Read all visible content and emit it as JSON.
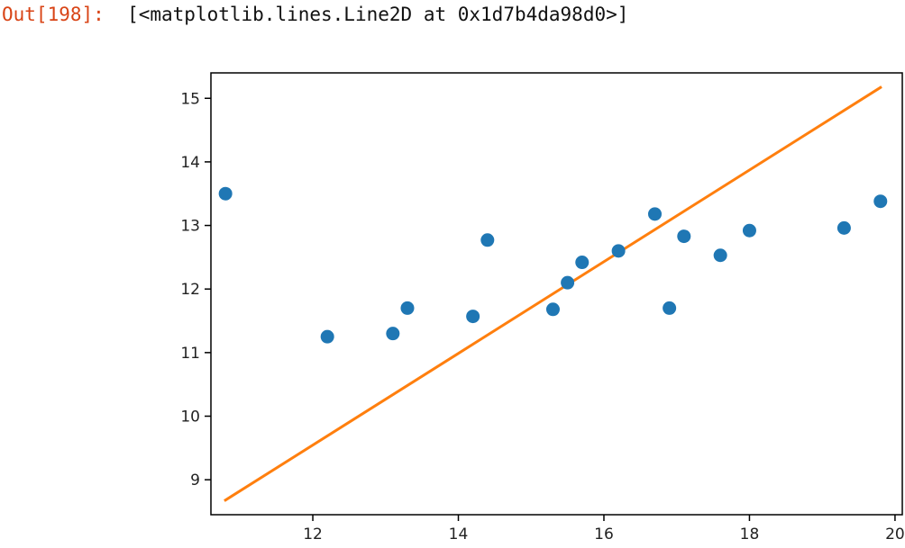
{
  "cell": {
    "prompt": "Out[198]:",
    "repr": "[<matplotlib.lines.Line2D at 0x1d7b4da98d0>]"
  },
  "colors": {
    "prompt": "#d84315",
    "scatter": "#1f77b4",
    "line": "#ff7f0e",
    "axes": "#000000"
  },
  "chart_data": {
    "type": "scatter",
    "title": "",
    "xlabel": "",
    "ylabel": "",
    "xlim": [
      10.6,
      20.1
    ],
    "ylim": [
      8.45,
      15.4
    ],
    "grid": false,
    "xticks": [
      12,
      14,
      16,
      18,
      20
    ],
    "yticks": [
      9,
      10,
      11,
      12,
      13,
      14,
      15
    ],
    "series": [
      {
        "kind": "scatter",
        "color": "#1f77b4",
        "x": [
          10.8,
          12.2,
          13.1,
          13.3,
          14.2,
          14.4,
          15.3,
          15.5,
          15.7,
          16.2,
          16.7,
          16.9,
          17.1,
          17.6,
          18.0,
          19.3,
          19.8
        ],
        "y": [
          13.5,
          11.25,
          11.3,
          11.7,
          11.57,
          12.77,
          11.68,
          12.1,
          12.42,
          12.6,
          13.18,
          11.7,
          12.83,
          12.53,
          12.92,
          12.96,
          13.38
        ]
      },
      {
        "kind": "line",
        "color": "#ff7f0e",
        "x": [
          10.8,
          19.8
        ],
        "y": [
          8.68,
          15.17
        ]
      }
    ]
  }
}
